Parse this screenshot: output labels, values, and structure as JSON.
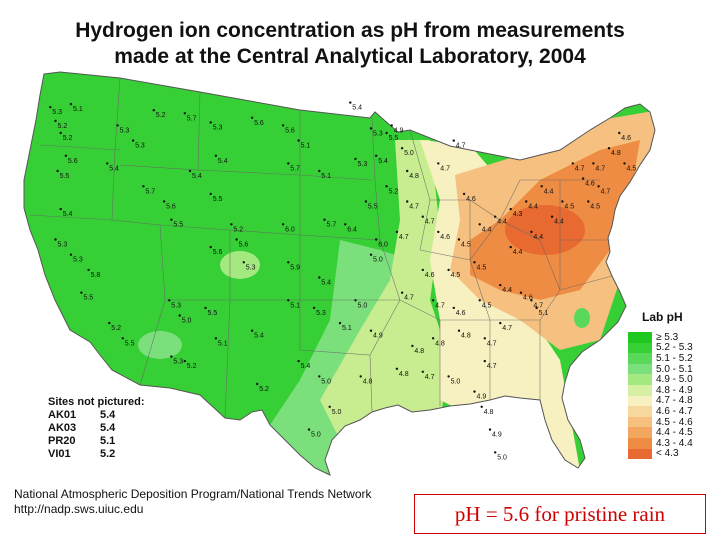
{
  "title_line1": "Hydrogen ion concentration as pH from measurements",
  "title_line2": "made at the Central Analytical Laboratory, 2004",
  "legend": {
    "title": "Lab pH",
    "items": [
      {
        "label": "≥ 5.3",
        "color": "#1fc81f"
      },
      {
        "label": "5.2 - 5.3",
        "color": "#36d036"
      },
      {
        "label": "5.1 - 5.2",
        "color": "#5ad85a"
      },
      {
        "label": "5.0 - 5.1",
        "color": "#7be07b"
      },
      {
        "label": "4.9 - 5.0",
        "color": "#a4e880"
      },
      {
        "label": "4.8 - 4.9",
        "color": "#d4f0a0"
      },
      {
        "label": "4.7 - 4.8",
        "color": "#f7f0c0"
      },
      {
        "label": "4.6 - 4.7",
        "color": "#f7d9a0"
      },
      {
        "label": "4.5 - 4.6",
        "color": "#f5c080"
      },
      {
        "label": "4.4 - 4.5",
        "color": "#f2a660"
      },
      {
        "label": "4.3 - 4.4",
        "color": "#ee8c44"
      },
      {
        "label": "< 4.3",
        "color": "#e86a30"
      }
    ]
  },
  "sites_not_pictured": {
    "title": "Sites not pictured:",
    "rows": [
      {
        "code": "AK01",
        "value": "5.4"
      },
      {
        "code": "AK03",
        "value": "5.4"
      },
      {
        "code": "PR20",
        "value": "5.1"
      },
      {
        "code": "VI01",
        "value": "5.2"
      }
    ]
  },
  "credit_line1": "National Atmospheric Deposition Program/National Trends Network",
  "credit_line2": "http://nadp.sws.uiuc.edu",
  "note": "pH = 5.6 for pristine rain",
  "zone_colors": {
    "green": "#36d036",
    "light_green": "#7be07b",
    "yellow_green": "#c8ec90",
    "pale_yellow": "#f7f0c0",
    "light_orange": "#f5c080",
    "orange": "#ee8c44",
    "deep_orange": "#e86a30"
  },
  "site_values": [
    {
      "v": "5.3",
      "lon": -123.5,
      "lat": 48.2
    },
    {
      "v": "5.1",
      "lon": -121.5,
      "lat": 48.4
    },
    {
      "v": "5.2",
      "lon": -123.0,
      "lat": 47.3
    },
    {
      "v": "5.2",
      "lon": -122.5,
      "lat": 46.5
    },
    {
      "v": "5.6",
      "lon": -122.0,
      "lat": 45.0
    },
    {
      "v": "5.5",
      "lon": -122.8,
      "lat": 44.0
    },
    {
      "v": "5.4",
      "lon": -122.5,
      "lat": 41.5
    },
    {
      "v": "5.3",
      "lon": -123.0,
      "lat": 39.5
    },
    {
      "v": "5.3",
      "lon": -121.5,
      "lat": 38.5
    },
    {
      "v": "5.8",
      "lon": -119.8,
      "lat": 37.5
    },
    {
      "v": "5.5",
      "lon": -120.5,
      "lat": 36.0
    },
    {
      "v": "5.2",
      "lon": -117.8,
      "lat": 34.0
    },
    {
      "v": "5.5",
      "lon": -116.5,
      "lat": 33.0
    },
    {
      "v": "5.3",
      "lon": -117.0,
      "lat": 47.0
    },
    {
      "v": "5.3",
      "lon": -115.5,
      "lat": 46.0
    },
    {
      "v": "5.4",
      "lon": -118.0,
      "lat": 44.5
    },
    {
      "v": "5.7",
      "lon": -114.5,
      "lat": 43.0
    },
    {
      "v": "5.6",
      "lon": -112.5,
      "lat": 42.0
    },
    {
      "v": "5.5",
      "lon": -111.8,
      "lat": 40.8
    },
    {
      "v": "5.2",
      "lon": -113.5,
      "lat": 48.0
    },
    {
      "v": "5.7",
      "lon": -110.5,
      "lat": 47.8
    },
    {
      "v": "5.3",
      "lon": -108.0,
      "lat": 47.2
    },
    {
      "v": "5.4",
      "lon": -107.5,
      "lat": 45.0
    },
    {
      "v": "5.4",
      "lon": -110.0,
      "lat": 44.0
    },
    {
      "v": "5.5",
      "lon": -108.0,
      "lat": 42.5
    },
    {
      "v": "5.2",
      "lon": -106.0,
      "lat": 40.5
    },
    {
      "v": "5.6",
      "lon": -105.5,
      "lat": 39.5
    },
    {
      "v": "5.6",
      "lon": -108.0,
      "lat": 39.0
    },
    {
      "v": "5.3",
      "lon": -104.8,
      "lat": 38.0
    },
    {
      "v": "5.3",
      "lon": -112.0,
      "lat": 35.5
    },
    {
      "v": "5.0",
      "lon": -111.0,
      "lat": 34.5
    },
    {
      "v": "5.5",
      "lon": -108.5,
      "lat": 35.0
    },
    {
      "v": "5.1",
      "lon": -107.5,
      "lat": 33.0
    },
    {
      "v": "5.2",
      "lon": -110.5,
      "lat": 31.5
    },
    {
      "v": "5.3",
      "lon": -111.8,
      "lat": 31.8
    },
    {
      "v": "5.4",
      "lon": -104.0,
      "lat": 33.5
    },
    {
      "v": "5.6",
      "lon": -104.0,
      "lat": 47.5
    },
    {
      "v": "5.6",
      "lon": -101.0,
      "lat": 47.0
    },
    {
      "v": "5.1",
      "lon": -99.5,
      "lat": 46.0
    },
    {
      "v": "5.7",
      "lon": -100.5,
      "lat": 44.5
    },
    {
      "v": "5.1",
      "lon": -97.5,
      "lat": 44.0
    },
    {
      "v": "6.0",
      "lon": -101.0,
      "lat": 40.5
    },
    {
      "v": "5.7",
      "lon": -97.0,
      "lat": 40.8
    },
    {
      "v": "5.9",
      "lon": -100.5,
      "lat": 38.0
    },
    {
      "v": "5.4",
      "lon": -97.5,
      "lat": 37.0
    },
    {
      "v": "5.1",
      "lon": -100.5,
      "lat": 35.5
    },
    {
      "v": "5.3",
      "lon": -98.0,
      "lat": 35.0
    },
    {
      "v": "5.1",
      "lon": -95.5,
      "lat": 34.0
    },
    {
      "v": "5.4",
      "lon": -99.5,
      "lat": 31.5
    },
    {
      "v": "5.0",
      "lon": -97.5,
      "lat": 30.5
    },
    {
      "v": "5.0",
      "lon": -96.5,
      "lat": 28.5
    },
    {
      "v": "5.2",
      "lon": -103.5,
      "lat": 30.0
    },
    {
      "v": "5.0",
      "lon": -98.5,
      "lat": 27.0
    },
    {
      "v": "6.4",
      "lon": -95.0,
      "lat": 40.5
    },
    {
      "v": "5.4",
      "lon": -94.5,
      "lat": 48.5
    },
    {
      "v": "5.3",
      "lon": -92.5,
      "lat": 46.8
    },
    {
      "v": "5.5",
      "lon": -91.0,
      "lat": 46.5
    },
    {
      "v": "5.4",
      "lon": -92.0,
      "lat": 45.0
    },
    {
      "v": "5.3",
      "lon": -94.0,
      "lat": 44.8
    },
    {
      "v": "5.5",
      "lon": -93.0,
      "lat": 42.0
    },
    {
      "v": "5.2",
      "lon": -91.0,
      "lat": 43.0
    },
    {
      "v": "6.0",
      "lon": -92.0,
      "lat": 39.5
    },
    {
      "v": "5.0",
      "lon": -92.5,
      "lat": 38.5
    },
    {
      "v": "5.0",
      "lon": -94.0,
      "lat": 35.5
    },
    {
      "v": "4.9",
      "lon": -92.5,
      "lat": 33.5
    },
    {
      "v": "4.8",
      "lon": -93.5,
      "lat": 30.5
    },
    {
      "v": "4.9",
      "lon": -90.5,
      "lat": 47.0
    },
    {
      "v": "5.0",
      "lon": -89.5,
      "lat": 45.5
    },
    {
      "v": "4.8",
      "lon": -89.0,
      "lat": 44.0
    },
    {
      "v": "4.7",
      "lon": -89.0,
      "lat": 42.0
    },
    {
      "v": "4.7",
      "lon": -90.0,
      "lat": 40.0
    },
    {
      "v": "4.7",
      "lon": -87.5,
      "lat": 41.0
    },
    {
      "v": "4.7",
      "lon": -86.0,
      "lat": 44.5
    },
    {
      "v": "4.7",
      "lon": -84.5,
      "lat": 46.0
    },
    {
      "v": "4.6",
      "lon": -83.5,
      "lat": 42.5
    },
    {
      "v": "4.6",
      "lon": -86.0,
      "lat": 40.0
    },
    {
      "v": "4.5",
      "lon": -84.0,
      "lat": 39.5
    },
    {
      "v": "4.4",
      "lon": -82.0,
      "lat": 40.5
    },
    {
      "v": "4.4",
      "lon": -80.5,
      "lat": 41.0
    },
    {
      "v": "4.3",
      "lon": -79.0,
      "lat": 41.5
    },
    {
      "v": "4.4",
      "lon": -77.5,
      "lat": 42.0
    },
    {
      "v": "4.4",
      "lon": -76.0,
      "lat": 43.0
    },
    {
      "v": "4.5",
      "lon": -74.0,
      "lat": 42.0
    },
    {
      "v": "4.4",
      "lon": -75.0,
      "lat": 41.0
    },
    {
      "v": "4.4",
      "lon": -77.0,
      "lat": 40.0
    },
    {
      "v": "4.4",
      "lon": -79.0,
      "lat": 39.0
    },
    {
      "v": "4.5",
      "lon": -82.5,
      "lat": 38.0
    },
    {
      "v": "4.5",
      "lon": -85.0,
      "lat": 37.5
    },
    {
      "v": "4.6",
      "lon": -87.5,
      "lat": 37.5
    },
    {
      "v": "4.7",
      "lon": -89.5,
      "lat": 36.0
    },
    {
      "v": "4.7",
      "lon": -86.5,
      "lat": 35.5
    },
    {
      "v": "4.6",
      "lon": -84.5,
      "lat": 35.0
    },
    {
      "v": "4.5",
      "lon": -82.0,
      "lat": 35.5
    },
    {
      "v": "4.4",
      "lon": -80.0,
      "lat": 36.5
    },
    {
      "v": "4.6",
      "lon": -78.0,
      "lat": 36.0
    },
    {
      "v": "4.7",
      "lon": -77.0,
      "lat": 35.5
    },
    {
      "v": "5.1",
      "lon": -76.5,
      "lat": 35.0
    },
    {
      "v": "4.7",
      "lon": -80.0,
      "lat": 34.0
    },
    {
      "v": "4.7",
      "lon": -81.5,
      "lat": 33.0
    },
    {
      "v": "4.8",
      "lon": -84.0,
      "lat": 33.5
    },
    {
      "v": "4.8",
      "lon": -86.5,
      "lat": 33.0
    },
    {
      "v": "4.8",
      "lon": -88.5,
      "lat": 32.5
    },
    {
      "v": "4.8",
      "lon": -90.0,
      "lat": 31.0
    },
    {
      "v": "4.7",
      "lon": -87.5,
      "lat": 30.8
    },
    {
      "v": "5.0",
      "lon": -85.0,
      "lat": 30.5
    },
    {
      "v": "4.9",
      "lon": -82.5,
      "lat": 29.5
    },
    {
      "v": "4.7",
      "lon": -81.5,
      "lat": 31.5
    },
    {
      "v": "4.8",
      "lon": -81.8,
      "lat": 28.5
    },
    {
      "v": "4.9",
      "lon": -81.0,
      "lat": 27.0
    },
    {
      "v": "5.0",
      "lon": -80.5,
      "lat": 25.5
    },
    {
      "v": "4.7",
      "lon": -73.0,
      "lat": 44.5
    },
    {
      "v": "4.6",
      "lon": -72.0,
      "lat": 43.5
    },
    {
      "v": "4.7",
      "lon": -71.0,
      "lat": 44.5
    },
    {
      "v": "4.8",
      "lon": -69.5,
      "lat": 45.5
    },
    {
      "v": "4.6",
      "lon": -68.5,
      "lat": 46.5
    },
    {
      "v": "4.5",
      "lon": -68.0,
      "lat": 44.5
    },
    {
      "v": "4.7",
      "lon": -70.5,
      "lat": 43.0
    },
    {
      "v": "4.5",
      "lon": -71.5,
      "lat": 42.0
    }
  ]
}
